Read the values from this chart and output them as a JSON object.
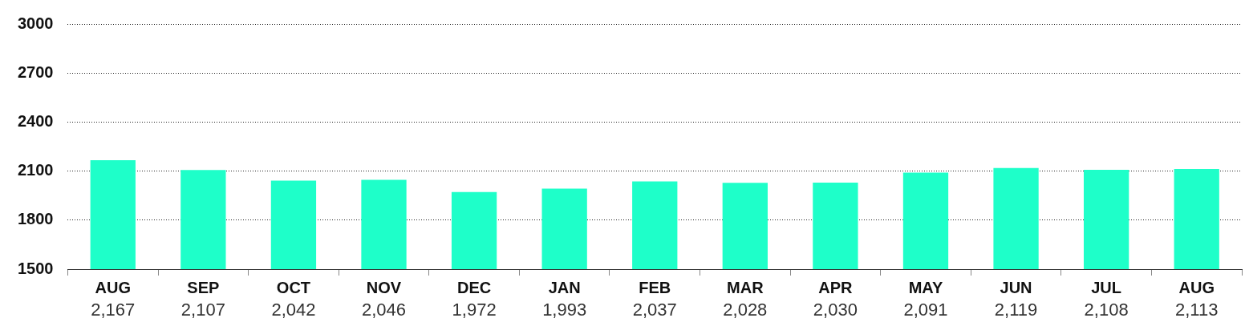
{
  "chart_data": {
    "type": "bar",
    "categories": [
      "AUG",
      "SEP",
      "OCT",
      "NOV",
      "DEC",
      "JAN",
      "FEB",
      "MAR",
      "APR",
      "MAY",
      "JUN",
      "JUL",
      "AUG"
    ],
    "values": [
      2167,
      2107,
      2042,
      2046,
      1972,
      1993,
      2037,
      2028,
      2030,
      2091,
      2119,
      2108,
      2113
    ],
    "value_labels": [
      "2,167",
      "2,107",
      "2,042",
      "2,046",
      "1,972",
      "1,993",
      "2,037",
      "2,028",
      "2,030",
      "2,091",
      "2,119",
      "2,108",
      "2,113"
    ],
    "color": "#1effc9",
    "ylim": [
      1500,
      3000
    ],
    "yticks": [
      1500,
      1800,
      2100,
      2400,
      2700,
      3000
    ],
    "grid": "y",
    "legend": false
  }
}
